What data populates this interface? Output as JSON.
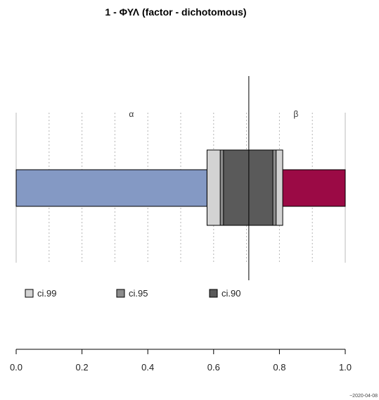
{
  "chart_data": {
    "type": "bar",
    "title": "1 - ΦΥΛ (factor - dichotomous)",
    "xlim": [
      0,
      1
    ],
    "x_ticks": [
      0.0,
      0.2,
      0.4,
      0.6,
      0.8,
      1.0
    ],
    "x_tick_labels": [
      "0.0",
      "0.2",
      "0.4",
      "0.6",
      "0.8",
      "1.0"
    ],
    "grid": "vertical dotted at 0.1 steps",
    "categories": [
      {
        "label": "α",
        "value": 0.58,
        "color": "#8499c4"
      },
      {
        "label": "β",
        "value": 0.42,
        "color": "#9b0a45"
      }
    ],
    "point_estimate": 0.707,
    "confidence_intervals": [
      {
        "name": "ci.99",
        "lower": 0.58,
        "upper": 0.81,
        "color": "#d3d3d3"
      },
      {
        "name": "ci.95",
        "lower": 0.62,
        "upper": 0.79,
        "color": "#8c8c8c"
      },
      {
        "name": "ci.90",
        "lower": 0.63,
        "upper": 0.78,
        "color": "#5a5a5a"
      }
    ],
    "legend": {
      "placement": "bottom-left",
      "items": [
        "ci.99",
        "ci.95",
        "ci.90"
      ]
    },
    "footnote": "~2020-04-08"
  }
}
